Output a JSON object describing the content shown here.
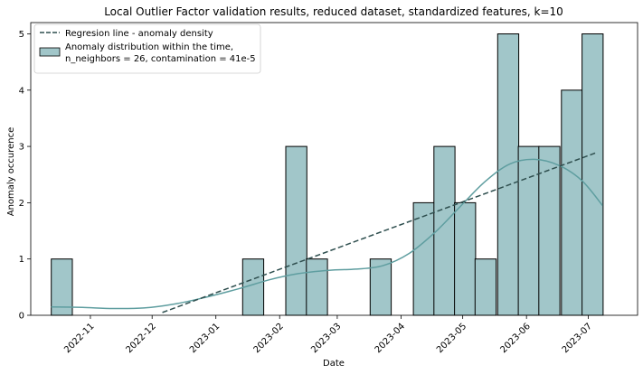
{
  "chart_data": {
    "type": "bar",
    "title": "Local Outlier Factor validation results, reduced dataset, standardized features, k=10",
    "xlabel": "Date",
    "ylabel": "Anomaly occurence",
    "x_tick_labels": [
      "2022-11",
      "2022-12",
      "2023-01",
      "2023-02",
      "2023-03",
      "2023-04",
      "2023-05",
      "2023-06",
      "2023-07"
    ],
    "x_tick_dates": [
      "2022-11-01",
      "2022-12-01",
      "2023-01-01",
      "2023-02-01",
      "2023-03-01",
      "2023-04-01",
      "2023-05-01",
      "2023-06-01",
      "2023-07-01"
    ],
    "xlim": [
      "2022-10-03",
      "2023-07-25"
    ],
    "y_ticks": [
      0,
      1,
      2,
      3,
      4,
      5
    ],
    "ylim": [
      0,
      5.2
    ],
    "bin_width_days": 10.26,
    "bins": [
      {
        "start": "2022-10-13",
        "count": 1
      },
      {
        "start": "2022-10-23",
        "count": 0
      },
      {
        "start": "2022-11-03",
        "count": 0
      },
      {
        "start": "2022-11-13",
        "count": 0
      },
      {
        "start": "2022-11-23",
        "count": 0
      },
      {
        "start": "2022-12-04",
        "count": 0
      },
      {
        "start": "2022-12-14",
        "count": 0
      },
      {
        "start": "2022-12-24",
        "count": 0
      },
      {
        "start": "2023-01-04",
        "count": 0
      },
      {
        "start": "2023-01-14",
        "count": 1
      },
      {
        "start": "2023-01-24",
        "count": 0
      },
      {
        "start": "2023-02-04",
        "count": 3
      },
      {
        "start": "2023-02-14",
        "count": 1
      },
      {
        "start": "2023-02-24",
        "count": 0
      },
      {
        "start": "2023-03-07",
        "count": 0
      },
      {
        "start": "2023-03-17",
        "count": 1
      },
      {
        "start": "2023-03-27",
        "count": 0
      },
      {
        "start": "2023-04-07",
        "count": 2
      },
      {
        "start": "2023-04-17",
        "count": 3
      },
      {
        "start": "2023-04-27",
        "count": 2
      },
      {
        "start": "2023-05-07",
        "count": 1
      },
      {
        "start": "2023-05-18",
        "count": 5
      },
      {
        "start": "2023-05-28",
        "count": 3
      },
      {
        "start": "2023-06-07",
        "count": 3
      },
      {
        "start": "2023-06-18",
        "count": 4
      },
      {
        "start": "2023-06-28",
        "count": 5
      }
    ],
    "kde_curve": [
      [
        "2022-10-13",
        0.15
      ],
      [
        "2022-10-28",
        0.14
      ],
      [
        "2022-11-12",
        0.12
      ],
      [
        "2022-11-27",
        0.13
      ],
      [
        "2022-12-12",
        0.2
      ],
      [
        "2022-12-27",
        0.32
      ],
      [
        "2023-01-12",
        0.47
      ],
      [
        "2023-01-27",
        0.63
      ],
      [
        "2023-02-10",
        0.74
      ],
      [
        "2023-02-25",
        0.8
      ],
      [
        "2023-03-10",
        0.82
      ],
      [
        "2023-03-23",
        0.88
      ],
      [
        "2023-04-05",
        1.1
      ],
      [
        "2023-04-18",
        1.49
      ],
      [
        "2023-04-30",
        1.94
      ],
      [
        "2023-05-12",
        2.38
      ],
      [
        "2023-05-24",
        2.69
      ],
      [
        "2023-06-05",
        2.77
      ],
      [
        "2023-06-17",
        2.66
      ],
      [
        "2023-06-28",
        2.39
      ],
      [
        "2023-07-08",
        1.95
      ]
    ],
    "regression_line": {
      "start": [
        "2022-12-06",
        0.05
      ],
      "end": [
        "2023-07-05",
        2.89
      ]
    },
    "bar_color": "#a1c6c9",
    "bar_edge_color": "#000000",
    "kde_color": "#5f9ea0",
    "regression_color": "#2f4f4f",
    "legend": [
      {
        "label": "Regresion line - anomaly density",
        "style": "dashed"
      },
      {
        "label": "Anomaly distribution within the time,\nn_neighbors = 26, contamination = 41e-5",
        "style": "bar"
      }
    ],
    "legend_placement": "upper-left",
    "grid": false
  }
}
